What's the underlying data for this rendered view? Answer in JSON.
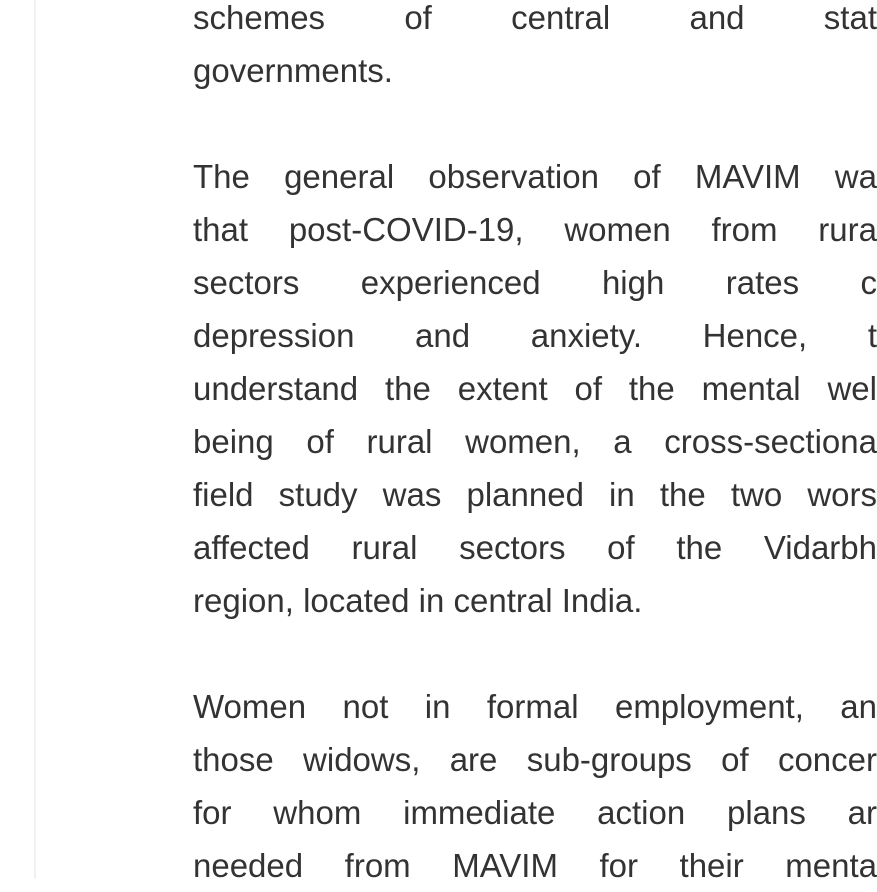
{
  "paragraphs": [
    [
      "schemes of central and stat",
      "governments."
    ],
    [
      "The general observation of MAVIM wa",
      "that post-COVID-19, women from rura",
      "sectors experienced high rates c",
      "depression and anxiety. Hence, t",
      "understand the extent of the mental wel",
      "being of rural women, a cross-sectiona",
      "field study was planned in the two wors",
      "affected rural sectors of the Vidarbh",
      "region, located in central India."
    ],
    [
      "Women not in formal employment, an",
      "those widows, are sub-groups of concer",
      "for whom immediate action plans ar",
      "needed from MAVIM for their menta"
    ]
  ]
}
